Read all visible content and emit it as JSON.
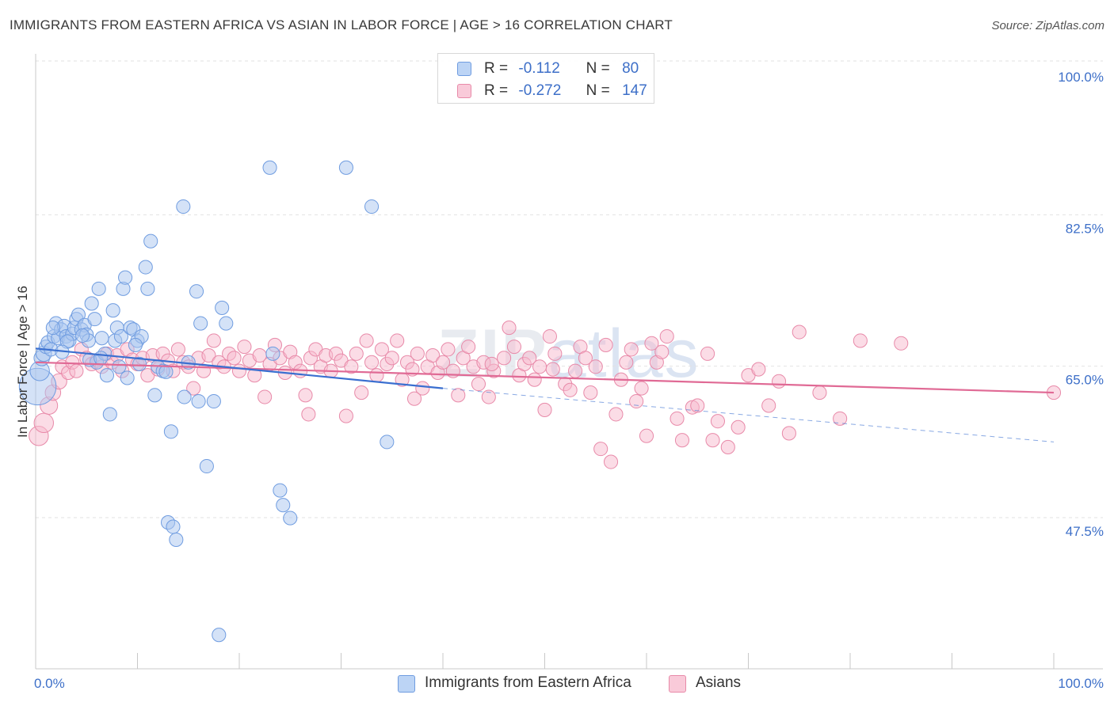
{
  "header": {
    "title": "IMMIGRANTS FROM EASTERN AFRICA VS ASIAN IN LABOR FORCE | AGE > 16 CORRELATION CHART",
    "source": "Source: ZipAtlas.com"
  },
  "watermark": {
    "zip": "ZIP",
    "atlas": "atlas"
  },
  "legend": {
    "series1": {
      "r_label": "R =",
      "r_value": "-0.112",
      "n_label": "N =",
      "n_value": "80"
    },
    "series2": {
      "r_label": "R =",
      "r_value": "-0.272",
      "n_label": "N =",
      "n_value": "147"
    }
  },
  "bottom_legend": {
    "series1_label": "Immigrants from Eastern Africa",
    "series2_label": "Asians"
  },
  "colors": {
    "blue_fill": "#a9c6f0",
    "blue_stroke": "#6f9ce0",
    "blue_line": "#3a6fd0",
    "pink_fill": "#f7b9cd",
    "pink_stroke": "#e88aa9",
    "pink_line": "#e06a95",
    "tick_text": "#3d6fc8"
  },
  "chart_data": {
    "type": "scatter",
    "ylabel": "In Labor Force | Age > 16",
    "xlim": [
      0,
      100
    ],
    "ylim": [
      30,
      100
    ],
    "x_tick_labels": [
      "0.0%",
      "100.0%"
    ],
    "y_ticks": [
      {
        "value": 100,
        "label": "100.0%"
      },
      {
        "value": 82.5,
        "label": "82.5%"
      },
      {
        "value": 65,
        "label": "65.0%"
      },
      {
        "value": 47.5,
        "label": "47.5%"
      }
    ],
    "grid": true,
    "series": [
      {
        "name": "Immigrants from Eastern Africa",
        "color": "blue",
        "trend": {
          "x": [
            0,
            40
          ],
          "y": [
            68.6,
            64.0
          ],
          "extend_x": [
            40,
            100
          ],
          "extend_y": [
            64.0,
            57.8
          ]
        },
        "points": [
          [
            0.2,
            64.2,
            1.9
          ],
          [
            0.4,
            66.0,
            1.0
          ],
          [
            0.6,
            67.5,
            0.8
          ],
          [
            0.8,
            68.0,
            0.8
          ],
          [
            1.0,
            68.8,
            0.7
          ],
          [
            1.2,
            69.3,
            0.7
          ],
          [
            1.5,
            68.5,
            0.7
          ],
          [
            1.8,
            70.0,
            0.7
          ],
          [
            2.0,
            71.5,
            0.7
          ],
          [
            2.2,
            69.8,
            0.7
          ],
          [
            2.5,
            70.8,
            0.7
          ],
          [
            2.8,
            71.2,
            0.7
          ],
          [
            3.0,
            70.0,
            0.7
          ],
          [
            3.3,
            69.5,
            0.7
          ],
          [
            3.6,
            70.3,
            0.7
          ],
          [
            3.8,
            71.0,
            0.7
          ],
          [
            4.0,
            72.0,
            0.7
          ],
          [
            4.2,
            72.5,
            0.7
          ],
          [
            4.5,
            70.8,
            0.7
          ],
          [
            4.8,
            71.3,
            0.7
          ],
          [
            5.0,
            70.2,
            0.7
          ],
          [
            5.2,
            69.5,
            0.7
          ],
          [
            5.5,
            73.8,
            0.7
          ],
          [
            5.8,
            72.0,
            0.7
          ],
          [
            6.0,
            67.0,
            0.7
          ],
          [
            6.2,
            75.5,
            0.7
          ],
          [
            6.5,
            69.8,
            0.7
          ],
          [
            6.8,
            68.0,
            0.7
          ],
          [
            7.0,
            65.5,
            0.7
          ],
          [
            7.3,
            61.0,
            0.7
          ],
          [
            7.6,
            73.0,
            0.7
          ],
          [
            7.8,
            69.5,
            0.7
          ],
          [
            8.0,
            71.0,
            0.7
          ],
          [
            8.2,
            66.5,
            0.7
          ],
          [
            8.4,
            70.0,
            0.7
          ],
          [
            8.6,
            75.5,
            0.7
          ],
          [
            8.8,
            76.8,
            0.7
          ],
          [
            9.0,
            65.2,
            0.7
          ],
          [
            9.3,
            71.0,
            0.7
          ],
          [
            9.6,
            70.8,
            0.7
          ],
          [
            10.0,
            69.5,
            0.7
          ],
          [
            10.4,
            70.0,
            0.7
          ],
          [
            10.8,
            78.0,
            0.7
          ],
          [
            11.0,
            75.5,
            0.7
          ],
          [
            11.3,
            81.0,
            0.7
          ],
          [
            11.7,
            63.2,
            0.7
          ],
          [
            12.0,
            66.5,
            0.7
          ],
          [
            12.5,
            66.0,
            0.7
          ],
          [
            13.0,
            48.5,
            0.7
          ],
          [
            13.3,
            59.0,
            0.7
          ],
          [
            13.5,
            48.0,
            0.7
          ],
          [
            13.8,
            46.5,
            0.7
          ],
          [
            14.5,
            85.0,
            0.7
          ],
          [
            14.6,
            63.0,
            0.7
          ],
          [
            15.0,
            67.0,
            0.7
          ],
          [
            15.8,
            75.2,
            0.7
          ],
          [
            16.0,
            62.5,
            0.7
          ],
          [
            16.2,
            71.5,
            0.7
          ],
          [
            16.8,
            55.0,
            0.7
          ],
          [
            17.5,
            62.5,
            0.7
          ],
          [
            18.0,
            35.5,
            0.7
          ],
          [
            18.3,
            73.3,
            0.7
          ],
          [
            18.7,
            71.5,
            0.7
          ],
          [
            23.0,
            89.5,
            0.7
          ],
          [
            23.3,
            68.0,
            0.7
          ],
          [
            24.0,
            52.2,
            0.7
          ],
          [
            24.3,
            50.5,
            0.7
          ],
          [
            25.0,
            49.0,
            0.7
          ],
          [
            30.5,
            89.5,
            0.7
          ],
          [
            33.0,
            85.0,
            0.7
          ],
          [
            34.5,
            57.8,
            0.7
          ],
          [
            4.6,
            70.1,
            0.7
          ],
          [
            3.1,
            69.4,
            0.7
          ],
          [
            1.7,
            71.0,
            0.7
          ],
          [
            2.6,
            68.2,
            0.7
          ],
          [
            5.3,
            67.3,
            0.7
          ],
          [
            9.8,
            69.0,
            0.7
          ],
          [
            6.4,
            67.5,
            0.7
          ],
          [
            10.2,
            66.8,
            0.7
          ],
          [
            12.8,
            65.9,
            0.7
          ]
        ]
      },
      {
        "name": "Asians",
        "color": "pink",
        "trend": {
          "x": [
            0,
            100
          ],
          "y": [
            67.0,
            63.5
          ]
        },
        "points": [
          [
            0.3,
            58.5,
            1.0
          ],
          [
            0.8,
            60.0,
            1.0
          ],
          [
            1.3,
            62.0,
            0.9
          ],
          [
            1.7,
            63.5,
            0.8
          ],
          [
            2.3,
            64.8,
            0.8
          ],
          [
            2.6,
            66.5,
            0.7
          ],
          [
            3.2,
            65.8,
            0.7
          ],
          [
            3.6,
            67.0,
            0.7
          ],
          [
            4.0,
            66.0,
            0.7
          ],
          [
            4.5,
            68.5,
            0.7
          ],
          [
            5.0,
            67.5,
            0.7
          ],
          [
            5.5,
            66.8,
            0.7
          ],
          [
            6.0,
            67.2,
            0.7
          ],
          [
            6.5,
            66.5,
            0.7
          ],
          [
            7.0,
            68.0,
            0.7
          ],
          [
            7.5,
            67.0,
            0.7
          ],
          [
            8.0,
            67.8,
            0.7
          ],
          [
            8.5,
            66.0,
            0.7
          ],
          [
            9.0,
            68.5,
            0.7
          ],
          [
            9.5,
            67.3,
            0.7
          ],
          [
            10.0,
            66.8,
            0.7
          ],
          [
            10.5,
            67.5,
            0.7
          ],
          [
            11.0,
            65.5,
            0.7
          ],
          [
            11.5,
            67.8,
            0.7
          ],
          [
            12.0,
            66.2,
            0.7
          ],
          [
            12.5,
            68.0,
            0.7
          ],
          [
            13.0,
            67.2,
            0.7
          ],
          [
            13.5,
            66.0,
            0.7
          ],
          [
            14.0,
            68.5,
            0.7
          ],
          [
            14.5,
            67.0,
            0.7
          ],
          [
            15.0,
            66.5,
            0.7
          ],
          [
            15.5,
            64.0,
            0.7
          ],
          [
            16.0,
            67.5,
            0.7
          ],
          [
            16.5,
            66.0,
            0.7
          ],
          [
            17.0,
            67.8,
            0.7
          ],
          [
            17.5,
            69.5,
            0.7
          ],
          [
            18.0,
            67.0,
            0.7
          ],
          [
            18.5,
            66.5,
            0.7
          ],
          [
            19.0,
            68.0,
            0.7
          ],
          [
            19.5,
            67.5,
            0.7
          ],
          [
            20.0,
            66.0,
            0.7
          ],
          [
            20.5,
            68.8,
            0.7
          ],
          [
            21.0,
            67.2,
            0.7
          ],
          [
            21.5,
            65.5,
            0.7
          ],
          [
            22.0,
            67.8,
            0.7
          ],
          [
            22.5,
            63.0,
            0.7
          ],
          [
            23.0,
            66.8,
            0.7
          ],
          [
            23.5,
            69.0,
            0.7
          ],
          [
            24.0,
            67.5,
            0.7
          ],
          [
            24.5,
            65.8,
            0.7
          ],
          [
            25.0,
            68.2,
            0.7
          ],
          [
            25.5,
            67.0,
            0.7
          ],
          [
            26.0,
            66.0,
            0.7
          ],
          [
            26.5,
            63.2,
            0.7
          ],
          [
            27.0,
            67.5,
            0.7
          ],
          [
            27.5,
            68.5,
            0.7
          ],
          [
            28.0,
            66.5,
            0.7
          ],
          [
            28.5,
            67.8,
            0.7
          ],
          [
            29.0,
            66.0,
            0.7
          ],
          [
            29.5,
            68.0,
            0.7
          ],
          [
            30.0,
            67.2,
            0.7
          ],
          [
            30.5,
            60.8,
            0.7
          ],
          [
            31.0,
            66.5,
            0.7
          ],
          [
            31.5,
            68.0,
            0.7
          ],
          [
            32.0,
            63.5,
            0.7
          ],
          [
            32.5,
            69.5,
            0.7
          ],
          [
            33.0,
            67.0,
            0.7
          ],
          [
            33.5,
            65.5,
            0.7
          ],
          [
            34.0,
            68.5,
            0.7
          ],
          [
            34.5,
            66.8,
            0.7
          ],
          [
            35.0,
            67.5,
            0.7
          ],
          [
            35.5,
            69.5,
            0.7
          ],
          [
            36.0,
            65.0,
            0.7
          ],
          [
            36.5,
            67.0,
            0.7
          ],
          [
            37.0,
            66.2,
            0.7
          ],
          [
            37.5,
            68.0,
            0.7
          ],
          [
            38.0,
            64.0,
            0.7
          ],
          [
            38.5,
            66.5,
            0.7
          ],
          [
            39.0,
            67.8,
            0.7
          ],
          [
            39.5,
            65.8,
            0.7
          ],
          [
            40.0,
            67.0,
            0.7
          ],
          [
            40.5,
            68.5,
            0.7
          ],
          [
            41.0,
            66.0,
            0.7
          ],
          [
            41.5,
            63.2,
            0.7
          ],
          [
            42.0,
            67.5,
            0.7
          ],
          [
            43.0,
            66.5,
            0.7
          ],
          [
            43.5,
            64.5,
            0.7
          ],
          [
            44.0,
            67.0,
            0.7
          ],
          [
            44.5,
            63.0,
            0.7
          ],
          [
            45.0,
            66.0,
            0.7
          ],
          [
            46.0,
            67.5,
            0.7
          ],
          [
            46.5,
            71.0,
            0.7
          ],
          [
            47.0,
            68.8,
            0.7
          ],
          [
            47.5,
            65.5,
            0.7
          ],
          [
            48.0,
            66.8,
            0.7
          ],
          [
            48.5,
            67.5,
            0.7
          ],
          [
            49.0,
            65.0,
            0.7
          ],
          [
            49.5,
            66.5,
            0.7
          ],
          [
            50.0,
            61.5,
            0.7
          ],
          [
            50.5,
            70.0,
            0.7
          ],
          [
            51.0,
            68.0,
            0.7
          ],
          [
            52.0,
            64.5,
            0.7
          ],
          [
            52.5,
            63.8,
            0.7
          ],
          [
            53.0,
            66.0,
            0.7
          ],
          [
            53.5,
            68.8,
            0.7
          ],
          [
            54.0,
            67.5,
            0.7
          ],
          [
            55.0,
            66.5,
            0.7
          ],
          [
            55.5,
            57.0,
            0.7
          ],
          [
            56.0,
            69.0,
            0.7
          ],
          [
            56.5,
            55.5,
            0.7
          ],
          [
            57.0,
            61.0,
            0.7
          ],
          [
            57.5,
            65.0,
            0.7
          ],
          [
            58.0,
            67.0,
            0.7
          ],
          [
            58.5,
            68.5,
            0.7
          ],
          [
            59.0,
            62.5,
            0.7
          ],
          [
            59.5,
            64.0,
            0.7
          ],
          [
            60.0,
            58.5,
            0.7
          ],
          [
            61.0,
            67.0,
            0.7
          ],
          [
            61.5,
            68.2,
            0.7
          ],
          [
            62.0,
            70.0,
            0.7
          ],
          [
            63.0,
            60.5,
            0.7
          ],
          [
            63.5,
            58.0,
            0.7
          ],
          [
            64.5,
            61.8,
            0.7
          ],
          [
            65.0,
            62.0,
            0.7
          ],
          [
            66.0,
            68.0,
            0.7
          ],
          [
            66.5,
            58.0,
            0.7
          ],
          [
            67.0,
            60.2,
            0.7
          ],
          [
            68.0,
            57.2,
            0.7
          ],
          [
            69.0,
            59.5,
            0.7
          ],
          [
            70.0,
            65.5,
            0.7
          ],
          [
            71.0,
            66.2,
            0.7
          ],
          [
            72.0,
            62.0,
            0.7
          ],
          [
            73.0,
            64.8,
            0.7
          ],
          [
            74.0,
            58.8,
            0.7
          ],
          [
            75.0,
            70.5,
            0.7
          ],
          [
            77.0,
            63.5,
            0.7
          ],
          [
            79.0,
            60.5,
            0.7
          ],
          [
            81.0,
            69.5,
            0.7
          ],
          [
            85.0,
            69.2,
            0.7
          ],
          [
            100.0,
            63.5,
            0.7
          ],
          [
            37.2,
            62.8,
            0.7
          ],
          [
            44.8,
            66.8,
            0.7
          ],
          [
            54.5,
            63.5,
            0.7
          ],
          [
            60.5,
            69.2,
            0.7
          ],
          [
            42.5,
            68.8,
            0.7
          ],
          [
            26.8,
            61.0,
            0.7
          ],
          [
            50.8,
            66.2,
            0.7
          ]
        ]
      }
    ]
  }
}
